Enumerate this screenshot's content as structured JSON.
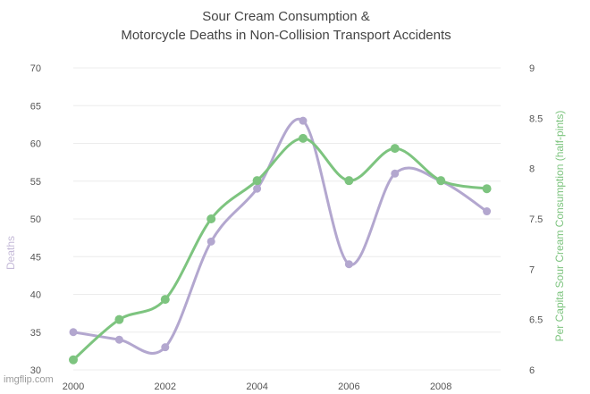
{
  "chart_data": {
    "type": "line",
    "title": [
      "Sour Cream Consumption &",
      "Motorcycle Deaths in Non-Collision Transport Accidents"
    ],
    "x": [
      2000,
      2001,
      2002,
      2003,
      2004,
      2005,
      2006,
      2007,
      2008,
      2009
    ],
    "x_ticks": [
      2000,
      2002,
      2004,
      2006,
      2008
    ],
    "xlim": [
      2000,
      2009.3
    ],
    "y_left": {
      "label": "Deaths",
      "ticks": [
        30,
        35,
        40,
        45,
        50,
        55,
        60,
        65,
        70
      ],
      "ylim": [
        30,
        70
      ],
      "color": "#c5bad8"
    },
    "y_right": {
      "label": "Per Capita Sour Cream Consumption (half-pints)",
      "ticks": [
        6,
        6.5,
        7,
        7.5,
        8,
        8.5,
        9
      ],
      "ylim": [
        6,
        9
      ],
      "color": "#7dc47f"
    },
    "series": [
      {
        "axis": "left",
        "color": "#b3a7cf",
        "values": [
          35,
          34,
          33,
          47,
          54,
          63,
          44,
          56,
          55,
          51
        ]
      },
      {
        "axis": "right",
        "color": "#7dc47f",
        "values": [
          6.1,
          6.5,
          6.7,
          7.5,
          7.88,
          8.3,
          7.88,
          8.2,
          7.88,
          7.8
        ]
      }
    ],
    "grid": true
  },
  "watermark": "imgflip.com"
}
